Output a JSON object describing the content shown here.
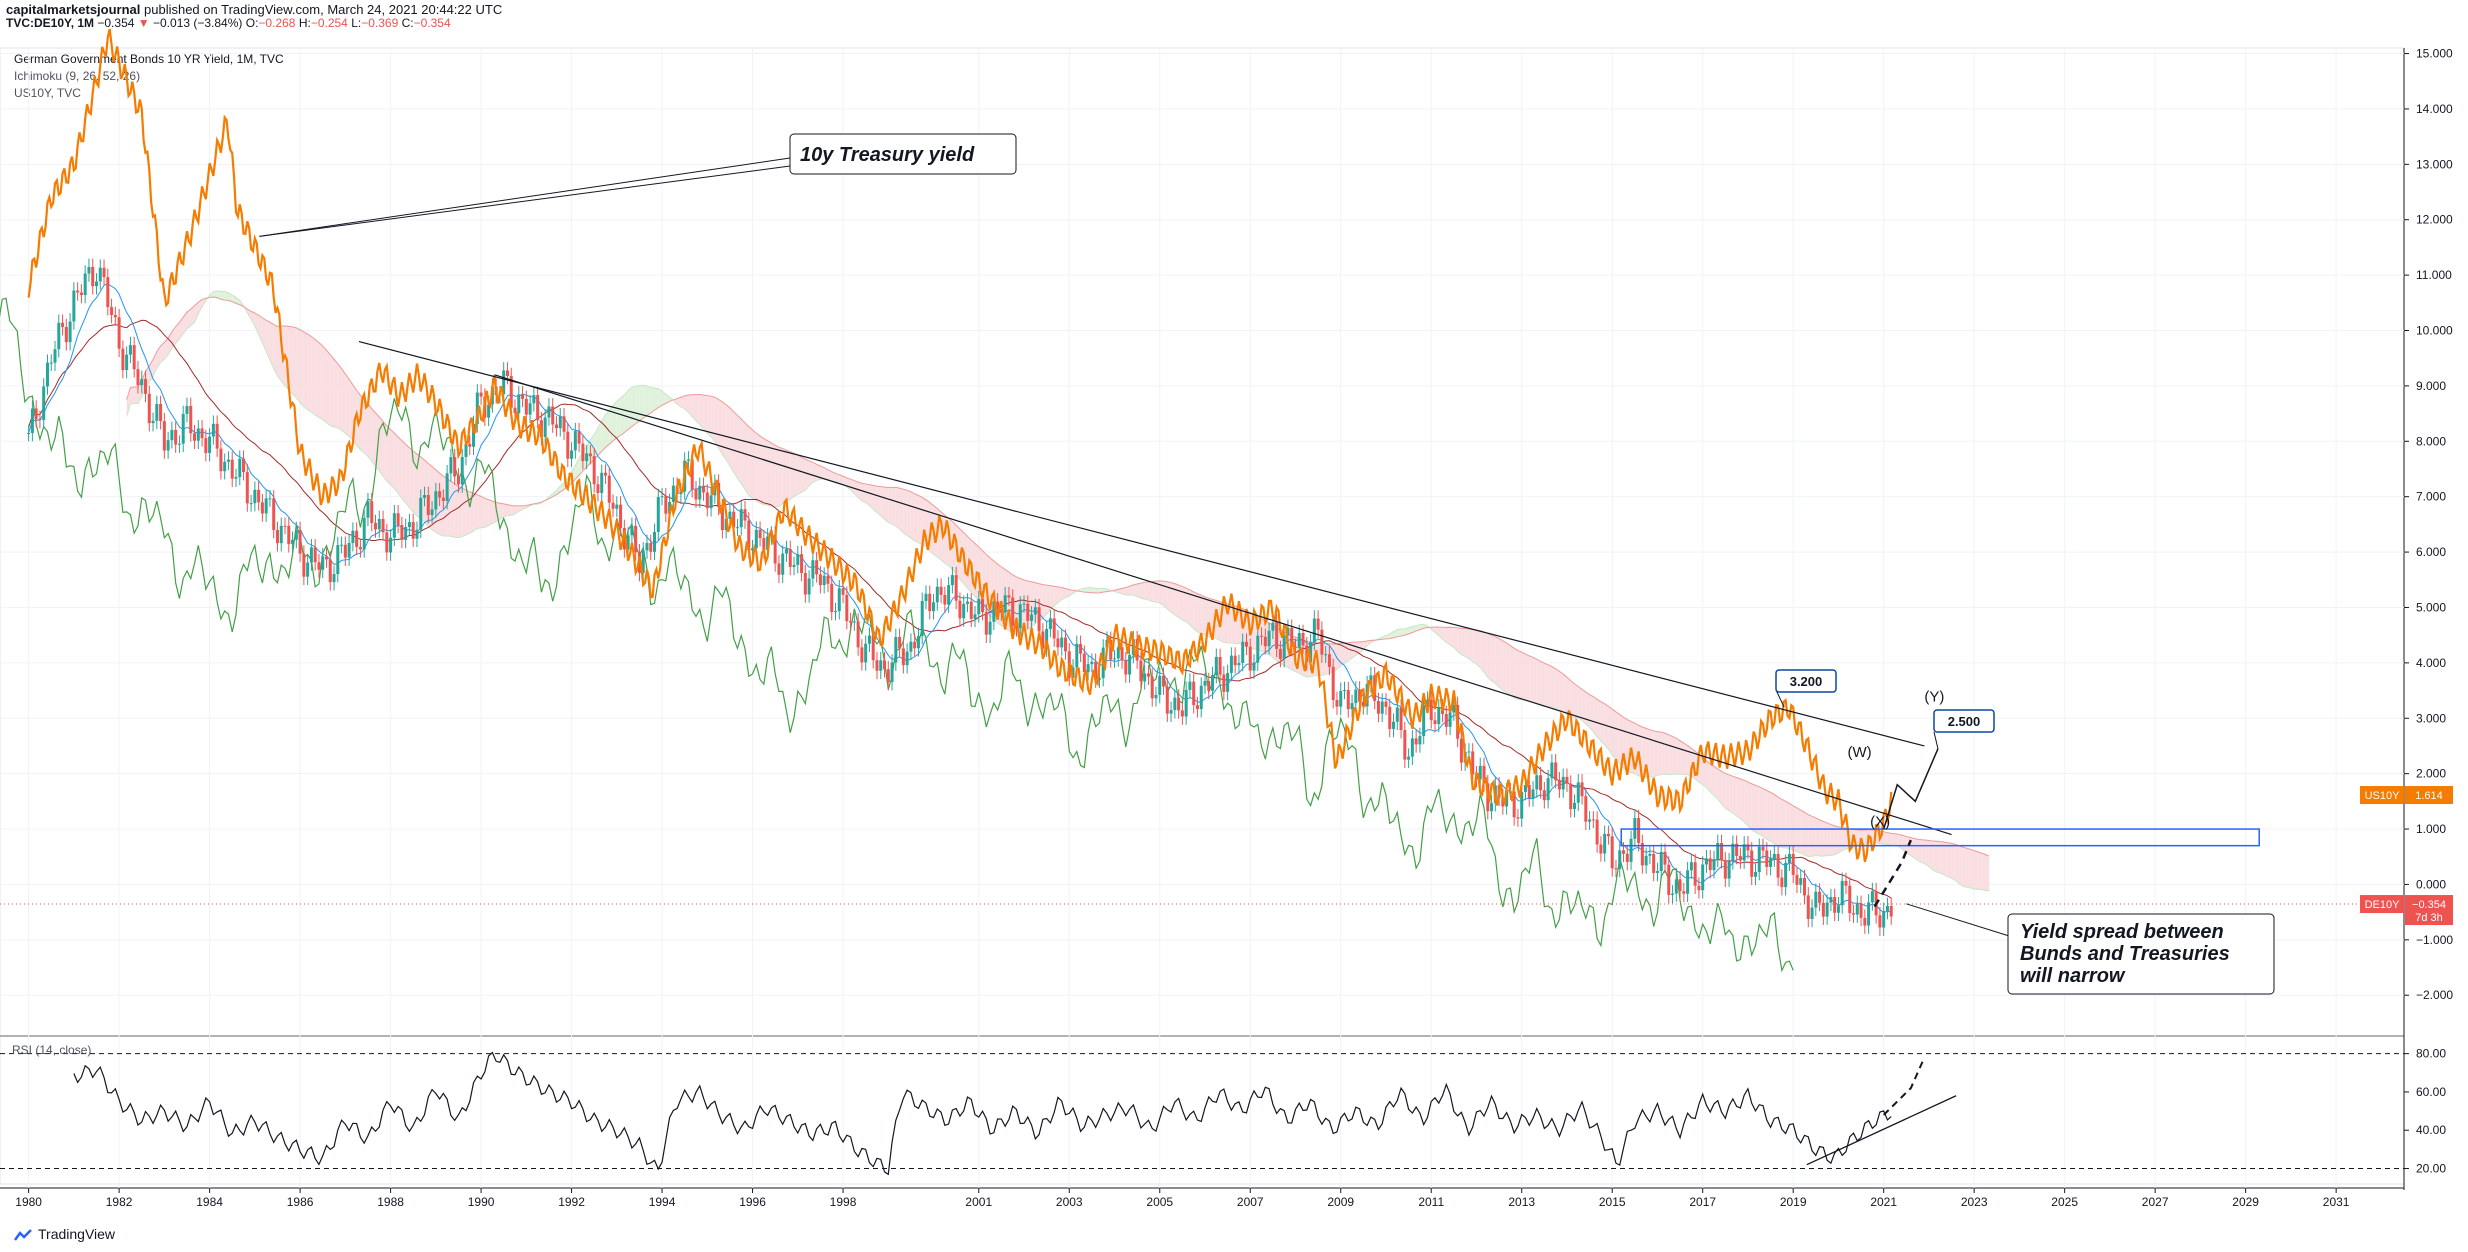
{
  "header": {
    "author": "capitalmarketsjournal",
    "published": " published on TradingView.com, March 24, 2021 20:44:22 UTC",
    "symbol": "TVC:DE10Y, 1M",
    "last": "−0.354",
    "change": "−0.013 (−3.84%)",
    "o_label": "O:",
    "o_value": "−0.268",
    "h_label": "H:",
    "h_value": "−0.254",
    "l_label": "L:",
    "l_value": "−0.369",
    "c_label": "C:",
    "c_value": "−0.354",
    "series_title": "German Government Bonds 10 YR Yield, 1M, TVC",
    "indicator": "Ichimoku (9, 26, 52, 26)",
    "overlay": "US10Y, TVC"
  },
  "rsi": {
    "label": "RSI (14, close)"
  },
  "footer": {
    "brand": "TradingView"
  },
  "colors": {
    "us10y": "#f57c00",
    "candle_up": "#26a69a",
    "candle_down": "#ef5350",
    "tenkan": "#2196f3",
    "kijun": "#a52a2a",
    "lagging": "#43a047",
    "cloud_bear": "#f8d7da",
    "cloud_bull": "#d8efd3",
    "box": "#2962ff",
    "de_badge": "#ef5350",
    "us_badge": "#f57c00"
  },
  "chart_data": {
    "type": "line",
    "title": "German Government Bonds 10 YR Yield, 1M, TVC",
    "x_axis": {
      "ticks": [
        "1980",
        "1982",
        "1984",
        "1986",
        "1988",
        "1990",
        "1992",
        "1994",
        "1996",
        "1998",
        "2001",
        "2003",
        "2005",
        "2007",
        "2009",
        "2011",
        "2013",
        "2015",
        "2017",
        "2019",
        "2021",
        "2023",
        "2025",
        "2027",
        "2029",
        "2031"
      ],
      "range": [
        1979.5,
        2032.5
      ]
    },
    "y_axis": {
      "ticks": [
        "15.000",
        "14.000",
        "13.000",
        "12.000",
        "11.000",
        "10.000",
        "9.000",
        "8.000",
        "7.000",
        "6.000",
        "5.000",
        "4.000",
        "3.000",
        "2.000",
        "1.000",
        "0.000",
        "−1.000",
        "−2.000"
      ],
      "range": [
        -2.7,
        15.1
      ]
    },
    "series": [
      {
        "name": "US10Y",
        "x": [
          1980.0,
          1980.5,
          1981.0,
          1981.5,
          1981.75,
          1982.5,
          1983.0,
          1983.6,
          1984.4,
          1984.6,
          1985.0,
          1985.4,
          1986.0,
          1986.5,
          1986.9,
          1987.3,
          1987.8,
          1988.2,
          1988.6,
          1989.0,
          1989.5,
          1990.0,
          1990.3,
          1990.8,
          1991.3,
          1991.8,
          1992.3,
          1992.8,
          1993.3,
          1993.8,
          1994.3,
          1994.8,
          1995.2,
          1995.7,
          1996.2,
          1996.7,
          1997.2,
          1997.7,
          1998.3,
          1998.8,
          1999.3,
          1999.8,
          2000.2,
          2000.7,
          2001.2,
          2001.8,
          2002.4,
          2002.8,
          2003.5,
          2004.0,
          2004.5,
          2005.0,
          2005.5,
          2006.0,
          2006.5,
          2007.0,
          2007.5,
          2008.0,
          2008.5,
          2008.9,
          2009.5,
          2010.0,
          2010.6,
          2011.0,
          2011.5,
          2011.9,
          2012.5,
          2013.0,
          2013.5,
          2014.0,
          2014.5,
          2015.0,
          2015.5,
          2016.0,
          2016.5,
          2017.0,
          2017.5,
          2018.0,
          2018.5,
          2018.9,
          2019.3,
          2019.7,
          2020.0,
          2020.3,
          2020.6,
          2021.0,
          2021.2
        ],
        "values": [
          10.8,
          12.4,
          13.0,
          14.5,
          15.3,
          13.9,
          10.5,
          11.8,
          13.8,
          12.2,
          11.5,
          10.8,
          7.8,
          7.0,
          7.3,
          8.5,
          9.3,
          8.8,
          9.2,
          8.7,
          7.9,
          8.5,
          9.0,
          8.3,
          8.1,
          7.4,
          7.0,
          6.6,
          6.0,
          5.3,
          7.0,
          7.9,
          7.1,
          6.1,
          5.8,
          6.8,
          6.3,
          5.9,
          5.4,
          4.4,
          5.2,
          6.2,
          6.5,
          5.8,
          5.2,
          4.6,
          4.3,
          3.9,
          3.6,
          4.5,
          4.3,
          4.2,
          4.0,
          4.4,
          5.1,
          4.7,
          5.0,
          4.1,
          4.0,
          2.2,
          3.4,
          3.8,
          3.0,
          3.4,
          3.3,
          1.9,
          1.6,
          1.8,
          2.5,
          3.0,
          2.5,
          2.0,
          2.3,
          1.6,
          1.5,
          2.4,
          2.3,
          2.4,
          3.0,
          3.2,
          2.5,
          1.7,
          1.5,
          0.7,
          0.6,
          1.1,
          1.614
        ]
      },
      {
        "name": "DE10Y",
        "x": [
          1980.0,
          1980.5,
          1981.0,
          1981.5,
          1982.0,
          1982.5,
          1983.0,
          1983.5,
          1984.0,
          1984.5,
          1985.0,
          1985.5,
          1986.0,
          1986.5,
          1987.0,
          1987.5,
          1988.0,
          1988.5,
          1989.0,
          1989.5,
          1990.0,
          1990.5,
          1991.0,
          1991.5,
          1992.0,
          1992.5,
          1993.0,
          1993.5,
          1994.0,
          1994.5,
          1995.0,
          1995.5,
          1996.0,
          1996.5,
          1997.0,
          1997.5,
          1998.0,
          1998.5,
          1998.9,
          1999.5,
          2000.0,
          2000.5,
          2001.0,
          2001.5,
          2002.0,
          2002.5,
          2003.0,
          2003.5,
          2004.0,
          2004.5,
          2005.0,
          2005.5,
          2006.0,
          2006.5,
          2007.0,
          2007.5,
          2008.0,
          2008.5,
          2009.0,
          2009.5,
          2010.0,
          2010.5,
          2011.0,
          2011.5,
          2012.0,
          2012.5,
          2013.0,
          2013.5,
          2014.0,
          2014.5,
          2015.0,
          2015.5,
          2016.0,
          2016.5,
          2017.0,
          2017.5,
          2018.0,
          2018.5,
          2019.0,
          2019.5,
          2020.0,
          2020.5,
          2021.0,
          2021.2
        ],
        "values": [
          8.0,
          9.5,
          10.5,
          11.2,
          9.8,
          9.0,
          8.0,
          8.3,
          8.0,
          7.5,
          7.0,
          6.5,
          6.0,
          5.7,
          6.0,
          6.6,
          6.3,
          6.5,
          7.0,
          7.5,
          8.7,
          9.0,
          8.6,
          8.4,
          8.0,
          7.5,
          6.7,
          5.8,
          6.8,
          7.4,
          7.0,
          6.6,
          6.3,
          6.0,
          5.7,
          5.5,
          5.0,
          4.2,
          3.9,
          4.3,
          5.3,
          5.2,
          4.8,
          5.0,
          4.9,
          4.6,
          4.1,
          3.9,
          4.2,
          4.0,
          3.4,
          3.2,
          3.6,
          3.9,
          4.2,
          4.5,
          4.3,
          4.5,
          3.2,
          3.5,
          3.2,
          2.4,
          3.2,
          2.9,
          1.9,
          1.5,
          1.5,
          1.9,
          1.8,
          1.2,
          0.4,
          0.8,
          0.3,
          -0.1,
          0.3,
          0.5,
          0.5,
          0.4,
          0.2,
          -0.5,
          -0.2,
          -0.5,
          -0.5,
          -0.354
        ]
      }
    ],
    "trendlines": [
      {
        "x": [
          1987.3,
          2021.9
        ],
        "values": [
          9.8,
          2.5
        ]
      },
      {
        "x": [
          1990.3,
          2022.5
        ],
        "values": [
          9.2,
          0.9
        ]
      }
    ],
    "zone": {
      "x": [
        2015.2,
        2029.3
      ],
      "values": [
        0.7,
        1.0
      ]
    },
    "annotations": [
      {
        "text": "10y Treasury yield"
      },
      {
        "text": "3.200"
      },
      {
        "text": "2.500"
      },
      {
        "text": "(W)"
      },
      {
        "text": "(X)"
      },
      {
        "text": "(Y)"
      },
      {
        "text": "Yield spread between"
      },
      {
        "text": "Bunds and Treasuries"
      },
      {
        "text": "will narrow"
      }
    ],
    "badges": [
      {
        "label": "US10Y",
        "value": "1.614"
      },
      {
        "label": "DE10Y",
        "value": "−0.354",
        "sub": "7d 3h"
      }
    ],
    "rsi_panel": {
      "type": "line",
      "label": "RSI (14, close)",
      "y_ticks": [
        "80.00",
        "60.00",
        "40.00",
        "20.00"
      ],
      "range": [
        14,
        84
      ],
      "levels": [
        80,
        20
      ],
      "x": [
        1981.0,
        1981.5,
        1982.0,
        1982.5,
        1983.0,
        1983.5,
        1984.0,
        1984.5,
        1985.0,
        1985.5,
        1986.0,
        1986.5,
        1987.0,
        1987.5,
        1988.0,
        1988.5,
        1989.0,
        1989.5,
        1990.0,
        1990.3,
        1990.8,
        1991.5,
        1992.0,
        1992.5,
        1993.0,
        1993.5,
        1993.9,
        1994.3,
        1994.8,
        1995.3,
        1995.8,
        1996.3,
        1996.8,
        1997.3,
        1997.8,
        1998.3,
        1998.8,
        1999.0,
        1999.3,
        1999.8,
        2000.3,
        2000.8,
        2001.3,
        2001.8,
        2002.3,
        2002.8,
        2003.3,
        2003.8,
        2004.3,
        2004.8,
        2005.3,
        2005.8,
        2006.3,
        2006.8,
        2007.3,
        2007.8,
        2008.3,
        2008.8,
        2009.3,
        2009.8,
        2010.3,
        2010.8,
        2011.3,
        2011.8,
        2012.3,
        2012.8,
        2013.3,
        2013.8,
        2014.3,
        2014.8,
        2015.1,
        2015.5,
        2016.0,
        2016.5,
        2017.0,
        2017.5,
        2018.0,
        2018.5,
        2019.0,
        2019.5,
        2019.9,
        2020.3,
        2020.8,
        2021.2
      ],
      "values": [
        68,
        72,
        55,
        45,
        50,
        42,
        55,
        38,
        45,
        36,
        30,
        25,
        45,
        35,
        55,
        40,
        62,
        45,
        70,
        80,
        70,
        60,
        55,
        45,
        40,
        32,
        18,
        55,
        60,
        48,
        40,
        52,
        45,
        38,
        42,
        30,
        22,
        20,
        60,
        52,
        45,
        55,
        40,
        50,
        38,
        55,
        42,
        48,
        52,
        40,
        55,
        45,
        60,
        50,
        62,
        45,
        55,
        40,
        50,
        42,
        60,
        45,
        62,
        40,
        55,
        42,
        48,
        40,
        52,
        35,
        22,
        45,
        50,
        40,
        55,
        50,
        58,
        45,
        40,
        30,
        25,
        35,
        45,
        50
      ]
    }
  }
}
